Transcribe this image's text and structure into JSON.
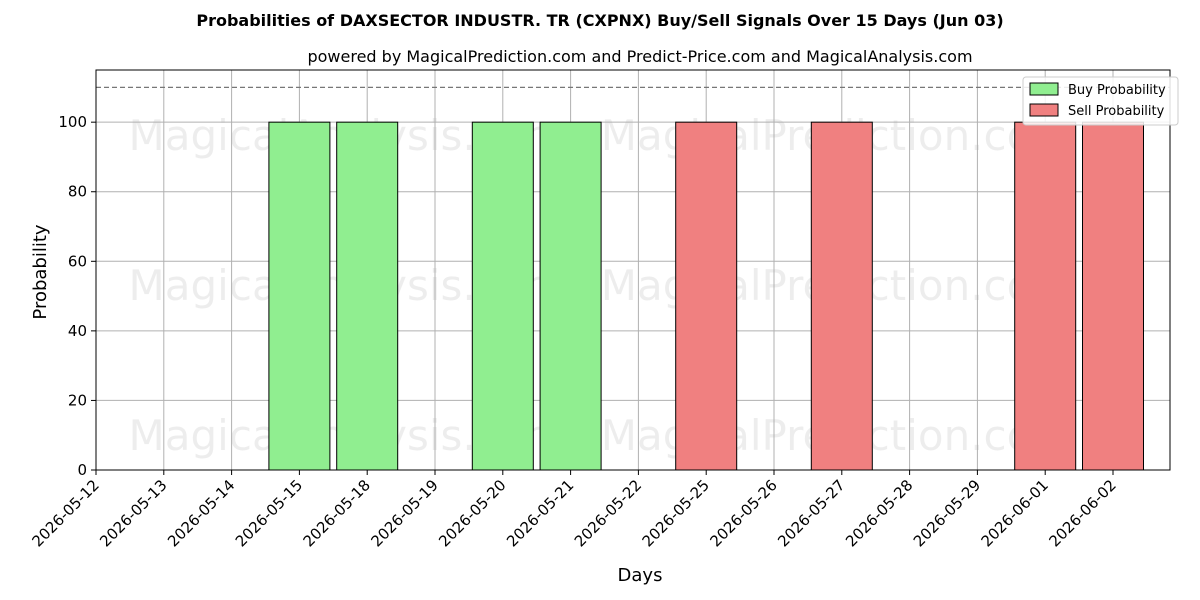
{
  "chart_data": {
    "type": "bar",
    "title": "Probabilities of DAXSECTOR INDUSTR. TR (CXPNX) Buy/Sell Signals Over 15 Days (Jun 03)",
    "subtitle": "powered by MagicalPrediction.com and Predict-Price.com and MagicalAnalysis.com",
    "xlabel": "Days",
    "ylabel": "Probability",
    "ylim": [
      0,
      115
    ],
    "yticks": [
      0,
      20,
      40,
      60,
      80,
      100
    ],
    "threshold_line": 110,
    "categories": [
      "2026-05-12",
      "2026-05-13",
      "2026-05-14",
      "2026-05-15",
      "2026-05-18",
      "2026-05-19",
      "2026-05-20",
      "2026-05-21",
      "2026-05-22",
      "2026-05-25",
      "2026-05-26",
      "2026-05-27",
      "2026-05-28",
      "2026-05-29",
      "2026-06-01",
      "2026-06-02"
    ],
    "series": [
      {
        "name": "Buy Probability",
        "color": "#90ee90",
        "values": [
          0,
          0,
          0,
          100,
          100,
          0,
          100,
          100,
          0,
          0,
          0,
          0,
          0,
          0,
          0,
          0
        ]
      },
      {
        "name": "Sell Probability",
        "color": "#f08080",
        "values": [
          0,
          0,
          0,
          0,
          0,
          0,
          0,
          0,
          0,
          100,
          0,
          100,
          0,
          0,
          100,
          100
        ]
      }
    ],
    "grid": true,
    "legend_position": "top-right",
    "watermarks": [
      "MagicalAnalysis.com",
      "MagicalPrediction.com",
      "MagicalAnalysis.com",
      "MagicalPrediction.com",
      "MagicalAnalysis.com",
      "MagicalPrediction.com"
    ]
  }
}
